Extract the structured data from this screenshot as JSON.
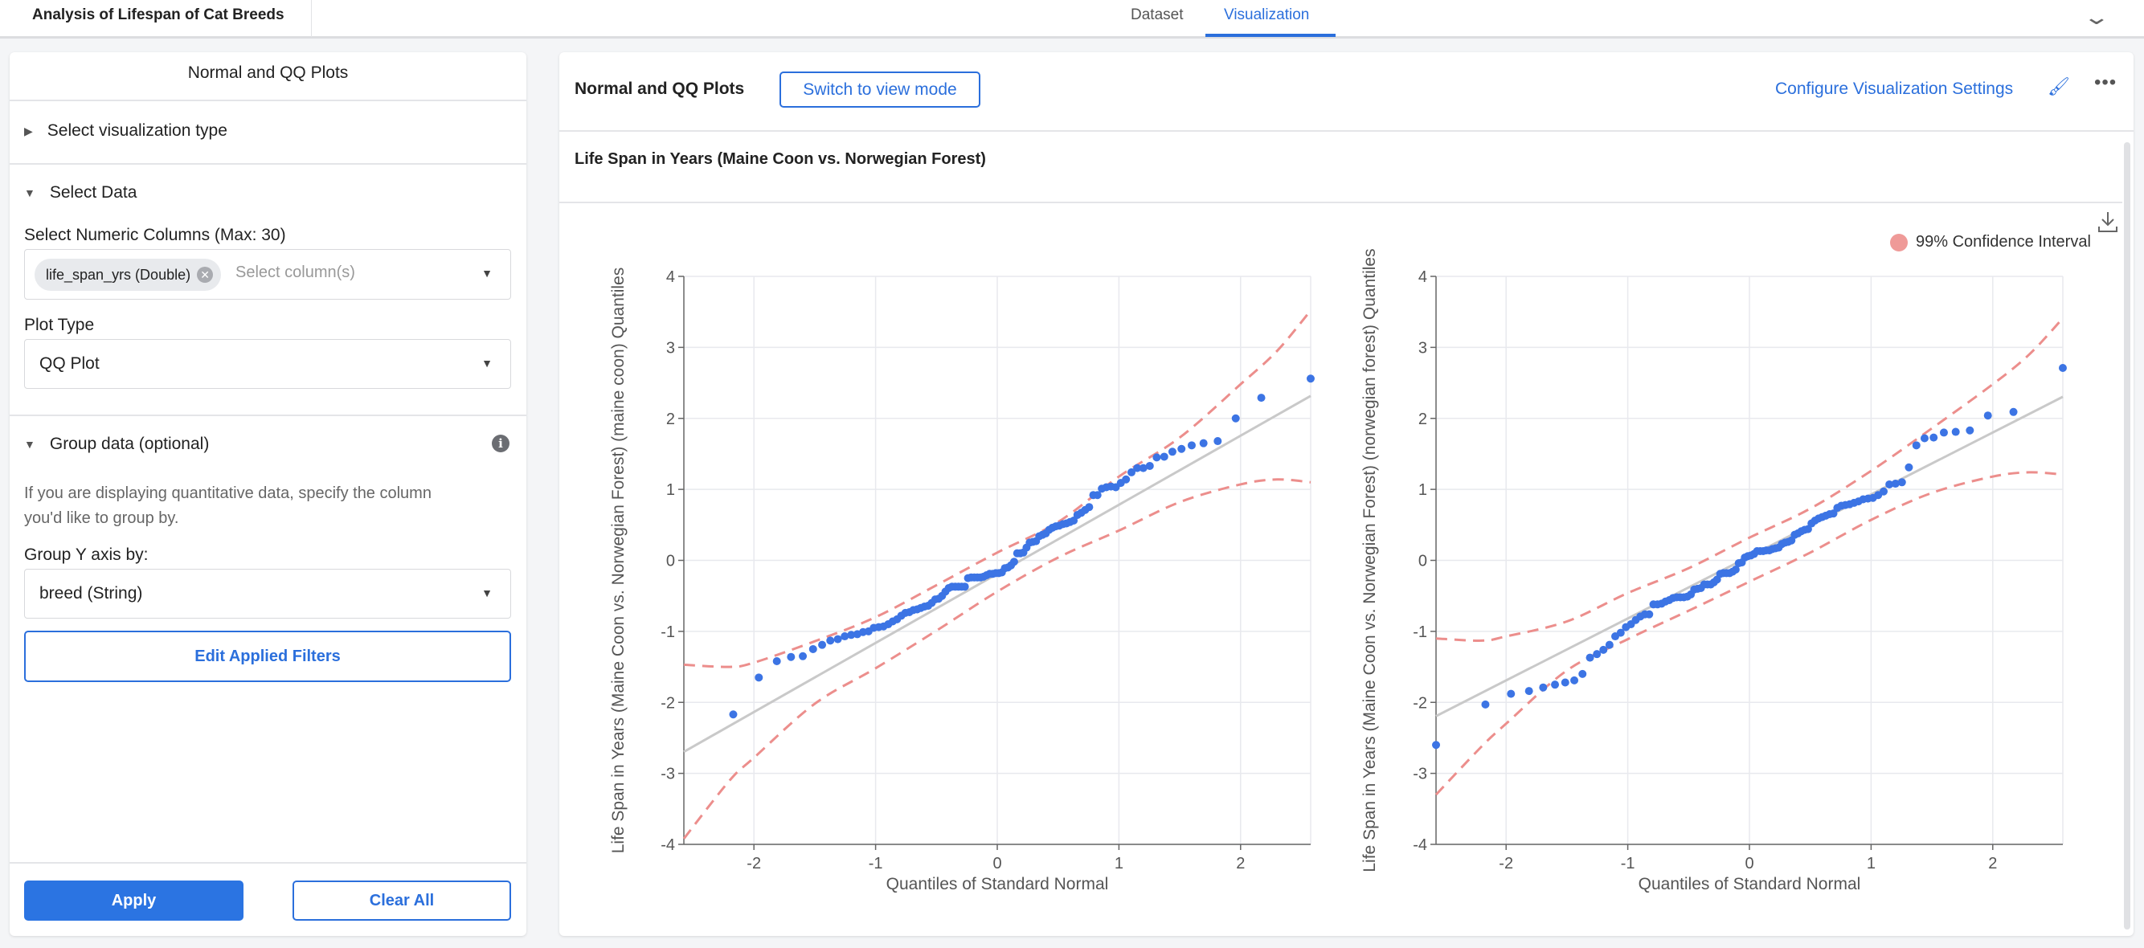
{
  "topbar": {
    "title": "Analysis of Lifespan of Cat Breeds",
    "tabs": [
      {
        "label": "Dataset"
      },
      {
        "label": "Visualization",
        "active": true
      }
    ],
    "collapse_icon": "chevron-down-icon"
  },
  "left_panel": {
    "title": "Normal and QQ Plots",
    "section_viz_type": "Select visualization type",
    "section_select_data": "Select Data",
    "numeric_columns_label": "Select Numeric Columns (Max: 30)",
    "numeric_columns_chip": "life_span_yrs (Double)",
    "numeric_columns_placeholder": "Select column(s)",
    "plot_type_label": "Plot Type",
    "plot_type_value": "QQ Plot",
    "section_group": "Group data (optional)",
    "group_description_1": "If you are displaying quantitative data, specify the column",
    "group_description_2": "you'd like to group by.",
    "group_y_label": "Group Y axis by:",
    "group_y_value": "breed (String)",
    "edit_filters": "Edit Applied Filters",
    "apply": "Apply",
    "clear_all": "Clear All"
  },
  "right_panel": {
    "header_title": "Normal and QQ Plots",
    "switch_mode": "Switch to view mode",
    "configure": "Configure Visualization Settings",
    "more": "•••",
    "subtitle": "Life Span in Years (Maine Coon vs. Norwegian Forest)",
    "legend": "99% Confidence Interval"
  },
  "colors": {
    "accent": "#2b6fdc",
    "points": "#3c74e4",
    "confidence": "#ec8e8c",
    "reference": "#c9c9c9"
  },
  "chart_data": [
    {
      "type": "scatter",
      "xlabel": "Quantiles of Standard Normal",
      "ylabel": "Life Span in Years (Maine Coon vs. Norwegian Forest) (maine coon) Quantiles",
      "xlim": [
        -2.576,
        2.576
      ],
      "ylim": [
        -4,
        4
      ],
      "xticks": [
        "-2",
        "-1",
        "0",
        "1",
        "2"
      ],
      "yticks": [
        "4",
        "3",
        "2",
        "1",
        "0",
        "-1",
        "-2",
        "-3",
        "-4"
      ],
      "n": 100,
      "x_note": "theoretical normal quantiles (i-0.5)/n",
      "y": [
        null,
        -2.17,
        -1.65,
        -1.42,
        -1.36,
        -1.35,
        -1.25,
        -1.19,
        -1.13,
        -1.11,
        -1.07,
        -1.05,
        -1.04,
        -1.01,
        -1.0,
        -0.95,
        -0.94,
        -0.93,
        -0.9,
        -0.86,
        -0.83,
        -0.78,
        -0.74,
        -0.73,
        -0.7,
        -0.69,
        -0.67,
        -0.65,
        -0.64,
        -0.6,
        -0.55,
        -0.54,
        -0.5,
        -0.44,
        -0.39,
        -0.37,
        -0.37,
        -0.37,
        -0.37,
        -0.37,
        -0.25,
        -0.24,
        -0.24,
        -0.24,
        -0.24,
        -0.23,
        -0.21,
        -0.19,
        -0.19,
        -0.18,
        -0.18,
        -0.17,
        -0.11,
        -0.1,
        -0.07,
        -0.02,
        0.1,
        0.1,
        0.11,
        0.18,
        0.25,
        0.26,
        0.27,
        0.34,
        0.36,
        0.38,
        0.43,
        0.46,
        0.48,
        0.49,
        0.51,
        0.52,
        0.54,
        0.56,
        0.64,
        0.67,
        0.71,
        0.75,
        0.92,
        0.92,
        1.01,
        1.03,
        1.04,
        1.03,
        1.09,
        1.14,
        1.24,
        1.3,
        1.3,
        1.33,
        1.45,
        1.46,
        1.53,
        1.57,
        1.62,
        1.65,
        1.68,
        2.0,
        2.29,
        2.56
      ],
      "reference_line": {
        "slope": 0.973,
        "intercept": -0.19
      },
      "confidence_x": [
        -2.576,
        -2.2,
        -2,
        -1.5,
        -1,
        -0.5,
        0,
        0.5,
        1,
        1.5,
        2,
        2.3,
        2.576
      ],
      "confidence_upper": [
        -1.47,
        -1.5,
        -1.44,
        -1.14,
        -0.8,
        -0.35,
        0.11,
        0.54,
        1.18,
        1.73,
        2.48,
        2.95,
        3.52
      ],
      "confidence_lower": [
        -3.92,
        -3.1,
        -2.78,
        -2.02,
        -1.52,
        -0.99,
        -0.44,
        0.04,
        0.42,
        0.82,
        1.07,
        1.14,
        1.1
      ]
    },
    {
      "type": "scatter",
      "xlabel": "Quantiles of Standard Normal",
      "ylabel": "Life Span in Years (Maine Coon vs. Norwegian Forest) (norwegian forest) Quantiles",
      "xlim": [
        -2.576,
        2.576
      ],
      "ylim": [
        -4,
        4
      ],
      "xticks": [
        "-2",
        "-1",
        "0",
        "1",
        "2"
      ],
      "yticks": [
        "4",
        "3",
        "2",
        "1",
        "0",
        "-1",
        "-2",
        "-3",
        "-4"
      ],
      "n": 100,
      "x_note": "theoretical normal quantiles (i-0.5)/n",
      "y": [
        -2.6,
        -2.03,
        -1.88,
        -1.84,
        -1.79,
        -1.75,
        -1.72,
        -1.69,
        -1.6,
        -1.37,
        -1.32,
        -1.26,
        -1.19,
        -1.07,
        -1.02,
        -0.94,
        -0.9,
        -0.84,
        -0.79,
        -0.76,
        -0.76,
        -0.62,
        -0.62,
        -0.61,
        -0.58,
        -0.56,
        -0.53,
        -0.52,
        -0.52,
        -0.52,
        -0.51,
        -0.48,
        -0.41,
        -0.4,
        -0.39,
        -0.34,
        -0.34,
        -0.34,
        -0.31,
        -0.27,
        -0.19,
        -0.18,
        -0.18,
        -0.18,
        -0.16,
        -0.13,
        -0.04,
        -0.03,
        0.04,
        0.06,
        0.07,
        0.09,
        0.13,
        0.13,
        0.13,
        0.14,
        0.14,
        0.16,
        0.17,
        0.18,
        0.23,
        0.25,
        0.26,
        0.28,
        0.36,
        0.38,
        0.41,
        0.43,
        0.44,
        0.52,
        0.56,
        0.59,
        0.61,
        0.63,
        0.65,
        0.66,
        0.74,
        0.77,
        0.78,
        0.79,
        0.81,
        0.83,
        0.86,
        0.87,
        0.88,
        0.92,
        0.97,
        1.07,
        1.08,
        1.1,
        1.31,
        1.62,
        1.72,
        1.73,
        1.8,
        1.81,
        1.83,
        2.04,
        2.09,
        2.71
      ],
      "reference_line": {
        "slope": 0.873,
        "intercept": 0.055
      },
      "confidence_x": [
        -2.576,
        -2.2,
        -2,
        -1.5,
        -1,
        -0.5,
        0,
        0.5,
        1,
        1.5,
        2,
        2.3,
        2.576
      ],
      "confidence_upper": [
        -1.1,
        -1.13,
        -1.07,
        -0.86,
        -0.46,
        -0.11,
        0.32,
        0.73,
        1.26,
        1.86,
        2.48,
        2.9,
        3.41
      ],
      "confidence_lower": [
        -3.3,
        -2.62,
        -2.3,
        -1.55,
        -1.11,
        -0.71,
        -0.3,
        0.11,
        0.57,
        0.95,
        1.18,
        1.24,
        1.21
      ]
    }
  ]
}
